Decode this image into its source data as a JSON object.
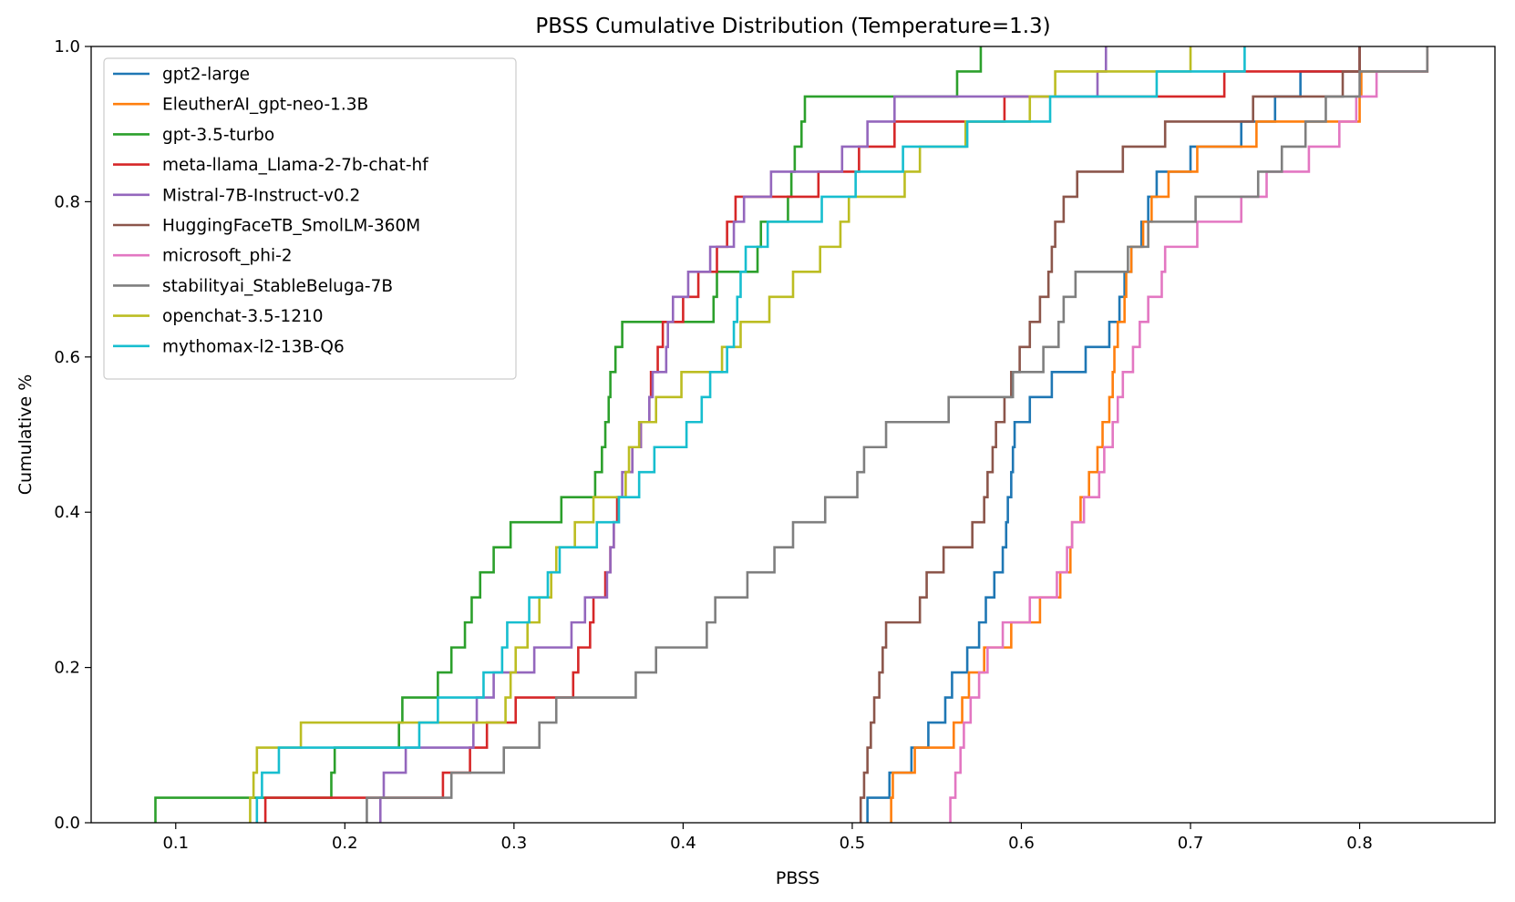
{
  "chart_data": {
    "type": "line",
    "title": "PBSS Cumulative Distribution (Temperature=1.3)",
    "xlabel": "PBSS",
    "ylabel": "Cumulative %",
    "xlim": [
      0.05,
      0.88
    ],
    "ylim": [
      0.0,
      1.0
    ],
    "x_ticks": [
      0.1,
      0.2,
      0.3,
      0.4,
      0.5,
      0.6,
      0.7,
      0.8
    ],
    "y_ticks": [
      0.0,
      0.2,
      0.4,
      0.6,
      0.8,
      1.0
    ],
    "grid": false,
    "legend_position": "upper-left",
    "series": [
      {
        "name": "gpt2-large",
        "color": "#1f77b4",
        "x": [
          0.509,
          0.522,
          0.535,
          0.545,
          0.555,
          0.559,
          0.568,
          0.575,
          0.579,
          0.584,
          0.589,
          0.591,
          0.592,
          0.594,
          0.595,
          0.596,
          0.605,
          0.618,
          0.638,
          0.652,
          0.658,
          0.661,
          0.665,
          0.671,
          0.675,
          0.68,
          0.7,
          0.73,
          0.75,
          0.765,
          0.8
        ]
      },
      {
        "name": "EleutherAI_gpt-neo-1.3B",
        "color": "#ff7f0e",
        "x": [
          0.523,
          0.524,
          0.537,
          0.56,
          0.565,
          0.569,
          0.578,
          0.594,
          0.611,
          0.623,
          0.629,
          0.63,
          0.635,
          0.64,
          0.645,
          0.648,
          0.652,
          0.654,
          0.655,
          0.657,
          0.661,
          0.662,
          0.665,
          0.672,
          0.677,
          0.687,
          0.704,
          0.739,
          0.8,
          0.801,
          0.84
        ]
      },
      {
        "name": "gpt-3.5-turbo",
        "color": "#2ca02c",
        "x": [
          0.088,
          0.192,
          0.194,
          0.232,
          0.234,
          0.255,
          0.263,
          0.271,
          0.275,
          0.28,
          0.288,
          0.298,
          0.328,
          0.348,
          0.352,
          0.354,
          0.356,
          0.357,
          0.36,
          0.364,
          0.418,
          0.42,
          0.444,
          0.446,
          0.462,
          0.464,
          0.466,
          0.47,
          0.472,
          0.562,
          0.576
        ]
      },
      {
        "name": "meta-llama_Llama-2-7b-chat-hf",
        "color": "#d62728",
        "x": [
          0.153,
          0.258,
          0.274,
          0.284,
          0.301,
          0.335,
          0.338,
          0.345,
          0.347,
          0.354,
          0.357,
          0.359,
          0.361,
          0.366,
          0.37,
          0.375,
          0.38,
          0.381,
          0.385,
          0.388,
          0.4,
          0.409,
          0.42,
          0.426,
          0.431,
          0.48,
          0.504,
          0.525,
          0.59,
          0.72,
          0.8
        ]
      },
      {
        "name": "Mistral-7B-Instruct-v0.2",
        "color": "#9467bd",
        "x": [
          0.221,
          0.223,
          0.236,
          0.276,
          0.278,
          0.288,
          0.312,
          0.334,
          0.342,
          0.355,
          0.357,
          0.359,
          0.362,
          0.364,
          0.37,
          0.375,
          0.38,
          0.382,
          0.39,
          0.391,
          0.394,
          0.403,
          0.416,
          0.43,
          0.436,
          0.452,
          0.494,
          0.509,
          0.525,
          0.645,
          0.65
        ]
      },
      {
        "name": "HuggingFaceTB_SmolLM-360M",
        "color": "#8c564b",
        "x": [
          0.505,
          0.507,
          0.509,
          0.511,
          0.513,
          0.516,
          0.518,
          0.52,
          0.54,
          0.544,
          0.554,
          0.571,
          0.578,
          0.585,
          0.58,
          0.583,
          0.59,
          0.594,
          0.599,
          0.605,
          0.611,
          0.616,
          0.618,
          0.62,
          0.625,
          0.633,
          0.66,
          0.685,
          0.737,
          0.79,
          0.8
        ]
      },
      {
        "name": "microsoft_phi-2",
        "color": "#e377c2",
        "x": [
          0.558,
          0.561,
          0.564,
          0.566,
          0.57,
          0.575,
          0.58,
          0.589,
          0.605,
          0.621,
          0.627,
          0.63,
          0.637,
          0.646,
          0.649,
          0.654,
          0.657,
          0.66,
          0.666,
          0.67,
          0.675,
          0.683,
          0.685,
          0.704,
          0.73,
          0.745,
          0.77,
          0.788,
          0.798,
          0.81,
          0.84
        ]
      },
      {
        "name": "stabilityai_StableBeluga-7B",
        "color": "#7f7f7f",
        "x": [
          0.213,
          0.263,
          0.294,
          0.315,
          0.325,
          0.372,
          0.384,
          0.414,
          0.419,
          0.438,
          0.454,
          0.465,
          0.484,
          0.503,
          0.507,
          0.52,
          0.557,
          0.595,
          0.613,
          0.622,
          0.625,
          0.632,
          0.663,
          0.675,
          0.703,
          0.74,
          0.754,
          0.768,
          0.78,
          0.8,
          0.84
        ]
      },
      {
        "name": "openchat-3.5-1210",
        "color": "#bcbd22",
        "x": [
          0.144,
          0.146,
          0.148,
          0.174,
          0.295,
          0.298,
          0.301,
          0.308,
          0.315,
          0.322,
          0.325,
          0.336,
          0.347,
          0.366,
          0.368,
          0.374,
          0.384,
          0.399,
          0.423,
          0.434,
          0.451,
          0.465,
          0.481,
          0.493,
          0.498,
          0.531,
          0.54,
          0.567,
          0.605,
          0.62,
          0.7
        ]
      },
      {
        "name": "mythomax-l2-13B-Q6",
        "color": "#17becf",
        "x": [
          0.148,
          0.151,
          0.161,
          0.244,
          0.255,
          0.282,
          0.293,
          0.296,
          0.309,
          0.32,
          0.327,
          0.349,
          0.362,
          0.374,
          0.383,
          0.402,
          0.411,
          0.416,
          0.426,
          0.43,
          0.432,
          0.434,
          0.437,
          0.45,
          0.482,
          0.502,
          0.53,
          0.568,
          0.617,
          0.68,
          0.732
        ]
      }
    ]
  }
}
